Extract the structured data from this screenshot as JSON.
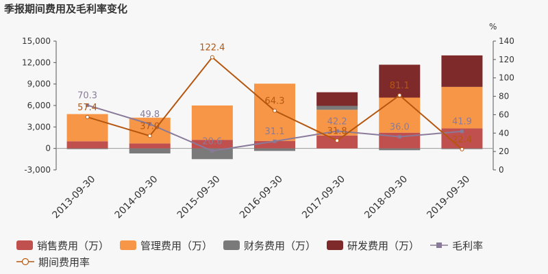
{
  "chart_data": {
    "type": "bar",
    "title": "季报期间费用及毛利率变化",
    "y2_unit": "%",
    "categories": [
      "2013-09-30",
      "2014-09-30",
      "2015-09-30",
      "2016-09-30",
      "2017-09-30",
      "2018-09-30",
      "2019-09-30"
    ],
    "ylim": [
      -3000,
      15000
    ],
    "yticks": [
      "15,000",
      "12,000",
      "9,000",
      "6,000",
      "3,000",
      "0",
      "-3,000"
    ],
    "y2lim": [
      0,
      140
    ],
    "y2ticks": [
      "140",
      "120",
      "100",
      "80",
      "60",
      "40",
      "20",
      "0"
    ],
    "bar_series": [
      {
        "name": "销售费用（万）",
        "color": "#c0504d",
        "values": [
          1000,
          700,
          1200,
          1050,
          1800,
          2200,
          2800
        ]
      },
      {
        "name": "管理费用（万）",
        "color": "#f79646",
        "values": [
          3800,
          3600,
          4800,
          8000,
          3600,
          4900,
          5800
        ]
      },
      {
        "name": "财务费用（万）",
        "color": "#7a7a7a",
        "values": [
          -100,
          -700,
          -1500,
          -350,
          550,
          -250,
          -100
        ]
      },
      {
        "name": "研发费用（万）",
        "color": "#7f2a2a",
        "values": [
          0,
          0,
          0,
          0,
          1900,
          4600,
          4400
        ]
      }
    ],
    "line_series": [
      {
        "name": "毛利率",
        "color": "#8a7a9a",
        "marker": "square",
        "values": [
          70.3,
          49.8,
          20.6,
          31.1,
          42.2,
          36.0,
          41.9
        ],
        "labels": [
          "70.3",
          "49.8",
          "20.6",
          "31.1",
          "42.2",
          "36.0",
          "41.9"
        ]
      },
      {
        "name": "期间费用率",
        "color": "#b5560f",
        "marker": "circle",
        "values": [
          57.4,
          37.0,
          122.4,
          64.3,
          31.8,
          81.1,
          22.4
        ],
        "labels": [
          "57.4",
          "37.0",
          "122.4",
          "64.3",
          "31.8",
          "81.1",
          "22.4"
        ]
      }
    ]
  }
}
